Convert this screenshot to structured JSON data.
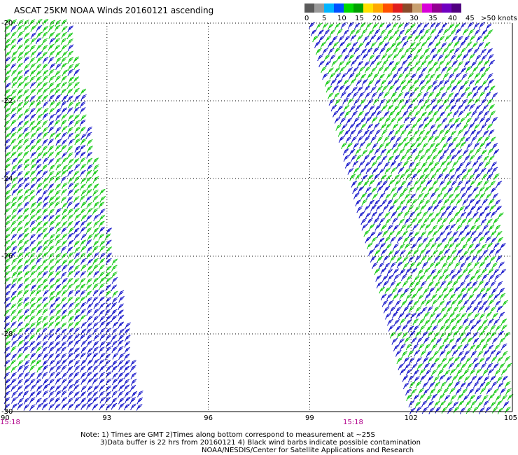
{
  "title": "ASCAT 25KM NOAA Winds 20160121 ascending",
  "legend": {
    "colors": [
      "#5a5a5a",
      "#9a9a9a",
      "#00b4ff",
      "#0050ff",
      "#00d800",
      "#00a000",
      "#ffe000",
      "#ffa800",
      "#ff5000",
      "#e01e1e",
      "#8a4a2a",
      "#c8a070",
      "#d800d8",
      "#900090",
      "#7000c0",
      "#500080"
    ],
    "labels": [
      "0",
      "5",
      "10",
      "15",
      "20",
      "25",
      "30",
      "35",
      "40",
      "45",
      ">50 knots"
    ]
  },
  "map": {
    "lon_ticks": [
      "90",
      "93",
      "96",
      "99",
      "102",
      "105"
    ],
    "lat_ticks": [
      "-20",
      "-22",
      "-24",
      "-26",
      "-28",
      "-30"
    ],
    "barb_colors": {
      "blue": "#1010c8",
      "green": "#10c810"
    }
  },
  "times": {
    "left": "15:18",
    "right": "15:18"
  },
  "notes": {
    "line1": "Note: 1) Times are GMT 2)Times along bottom correspond to measurement at ~25S",
    "line2": "3)Data buffer is 22 hrs from 20160121 4) Black wind barbs indicate possible contamination",
    "line3": "NOAA/NESDIS/Center for Satellite Applications and Research"
  }
}
